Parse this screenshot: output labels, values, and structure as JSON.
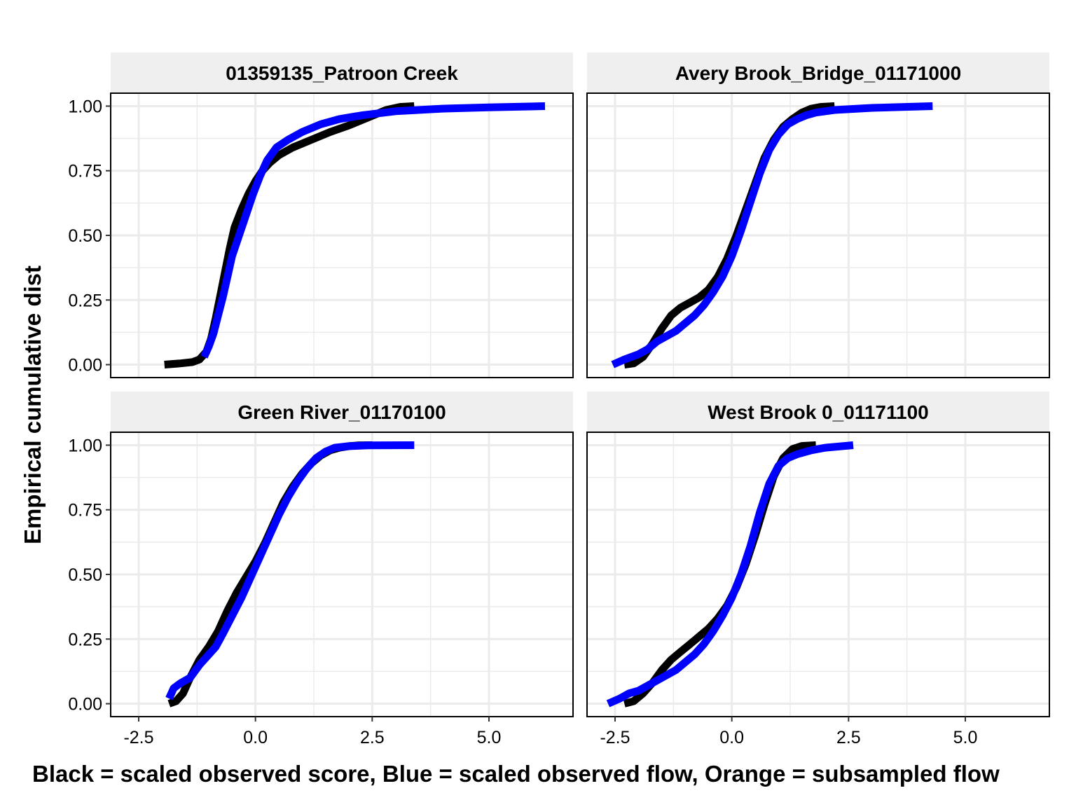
{
  "chart_data": {
    "type": "line",
    "facets": [
      {
        "title": "01359135_Patroon Creek",
        "series": [
          {
            "name": "scaled observed score",
            "color": "#000000",
            "x": [
              -1.95,
              -1.6,
              -1.35,
              -1.2,
              -1.05,
              -0.95,
              -0.85,
              -0.75,
              -0.65,
              -0.55,
              -0.45,
              -0.3,
              -0.15,
              0.0,
              0.15,
              0.3,
              0.5,
              0.8,
              1.2,
              1.6,
              2.0,
              2.4,
              2.8,
              3.1,
              3.4
            ],
            "y": [
              0.0,
              0.005,
              0.01,
              0.02,
              0.05,
              0.1,
              0.18,
              0.27,
              0.36,
              0.45,
              0.53,
              0.6,
              0.66,
              0.71,
              0.75,
              0.78,
              0.81,
              0.84,
              0.87,
              0.9,
              0.925,
              0.955,
              0.985,
              0.997,
              1.0
            ]
          },
          {
            "name": "scaled observed flow",
            "color": "#0000ff",
            "x": [
              -1.1,
              -1.0,
              -0.9,
              -0.8,
              -0.7,
              -0.6,
              -0.5,
              -0.35,
              -0.2,
              -0.05,
              0.1,
              0.25,
              0.45,
              0.7,
              1.0,
              1.4,
              1.8,
              2.3,
              3.0,
              4.0,
              5.0,
              6.2
            ],
            "y": [
              0.03,
              0.07,
              0.12,
              0.19,
              0.26,
              0.34,
              0.42,
              0.5,
              0.58,
              0.66,
              0.73,
              0.79,
              0.84,
              0.87,
              0.9,
              0.93,
              0.95,
              0.965,
              0.98,
              0.99,
              0.995,
              1.0
            ]
          }
        ]
      },
      {
        "title": "Avery Brook_Bridge_01171000",
        "series": [
          {
            "name": "scaled observed score",
            "color": "#000000",
            "x": [
              -2.3,
              -2.1,
              -1.9,
              -1.7,
              -1.5,
              -1.3,
              -1.1,
              -0.9,
              -0.7,
              -0.5,
              -0.3,
              -0.1,
              0.1,
              0.3,
              0.5,
              0.7,
              0.9,
              1.1,
              1.3,
              1.5,
              1.7,
              1.9,
              2.2
            ],
            "y": [
              0.0,
              0.005,
              0.03,
              0.08,
              0.14,
              0.19,
              0.22,
              0.24,
              0.26,
              0.29,
              0.34,
              0.41,
              0.5,
              0.6,
              0.7,
              0.8,
              0.87,
              0.92,
              0.95,
              0.975,
              0.99,
              0.997,
              1.0
            ]
          },
          {
            "name": "scaled observed flow",
            "color": "#0000ff",
            "x": [
              -2.55,
              -2.3,
              -2.0,
              -1.8,
              -1.6,
              -1.4,
              -1.2,
              -1.0,
              -0.8,
              -0.6,
              -0.4,
              -0.2,
              0.0,
              0.2,
              0.4,
              0.6,
              0.8,
              1.0,
              1.2,
              1.4,
              1.6,
              1.8,
              2.2,
              3.0,
              4.3
            ],
            "y": [
              0.0,
              0.02,
              0.04,
              0.06,
              0.09,
              0.11,
              0.13,
              0.16,
              0.19,
              0.23,
              0.28,
              0.34,
              0.42,
              0.52,
              0.63,
              0.74,
              0.83,
              0.89,
              0.93,
              0.95,
              0.965,
              0.975,
              0.985,
              0.993,
              1.0
            ]
          }
        ]
      },
      {
        "title": "Green River_01170100",
        "series": [
          {
            "name": "scaled observed score",
            "color": "#000000",
            "x": [
              -1.85,
              -1.7,
              -1.55,
              -1.4,
              -1.2,
              -1.0,
              -0.8,
              -0.6,
              -0.4,
              -0.2,
              0.0,
              0.2,
              0.4,
              0.6,
              0.8,
              1.0,
              1.2,
              1.4,
              1.6,
              1.8,
              2.0,
              2.2,
              2.5
            ],
            "y": [
              0.0,
              0.01,
              0.04,
              0.1,
              0.17,
              0.22,
              0.28,
              0.36,
              0.43,
              0.49,
              0.55,
              0.62,
              0.7,
              0.78,
              0.84,
              0.89,
              0.93,
              0.96,
              0.98,
              0.99,
              0.996,
              0.999,
              1.0
            ]
          },
          {
            "name": "scaled observed flow",
            "color": "#0000ff",
            "x": [
              -1.85,
              -1.75,
              -1.6,
              -1.4,
              -1.2,
              -1.0,
              -0.85,
              -0.7,
              -0.5,
              -0.3,
              -0.1,
              0.1,
              0.3,
              0.5,
              0.7,
              0.9,
              1.1,
              1.3,
              1.5,
              1.7,
              2.0,
              2.4,
              3.4
            ],
            "y": [
              0.02,
              0.06,
              0.08,
              0.1,
              0.15,
              0.19,
              0.22,
              0.27,
              0.34,
              0.41,
              0.49,
              0.57,
              0.65,
              0.73,
              0.8,
              0.86,
              0.91,
              0.95,
              0.975,
              0.99,
              0.996,
              0.999,
              1.0
            ]
          }
        ]
      },
      {
        "title": "West Brook 0_01171100",
        "series": [
          {
            "name": "scaled observed score",
            "color": "#000000",
            "x": [
              -2.3,
              -2.1,
              -1.9,
              -1.7,
              -1.5,
              -1.3,
              -1.1,
              -0.9,
              -0.7,
              -0.5,
              -0.3,
              -0.1,
              0.1,
              0.3,
              0.5,
              0.7,
              0.9,
              1.1,
              1.3,
              1.5,
              1.8
            ],
            "y": [
              0.0,
              0.01,
              0.04,
              0.08,
              0.13,
              0.17,
              0.2,
              0.23,
              0.26,
              0.29,
              0.33,
              0.38,
              0.45,
              0.54,
              0.65,
              0.77,
              0.88,
              0.95,
              0.985,
              0.997,
              1.0
            ]
          },
          {
            "name": "scaled observed flow",
            "color": "#0000ff",
            "x": [
              -2.65,
              -2.4,
              -2.2,
              -2.0,
              -1.8,
              -1.6,
              -1.4,
              -1.2,
              -1.0,
              -0.8,
              -0.6,
              -0.4,
              -0.2,
              0.0,
              0.2,
              0.4,
              0.6,
              0.8,
              1.0,
              1.2,
              1.4,
              1.7,
              2.0,
              2.6
            ],
            "y": [
              0.0,
              0.02,
              0.04,
              0.05,
              0.07,
              0.09,
              0.11,
              0.13,
              0.16,
              0.19,
              0.23,
              0.28,
              0.34,
              0.41,
              0.5,
              0.61,
              0.74,
              0.85,
              0.92,
              0.95,
              0.965,
              0.98,
              0.99,
              1.0
            ]
          }
        ]
      }
    ],
    "xlabel": "Black = scaled observed score, Blue = scaled observed flow, Orange = subsampled flow",
    "ylabel": "Empirical cumulative dist",
    "xlim": [
      -3.1,
      6.8
    ],
    "ylim": [
      -0.05,
      1.05
    ],
    "xticks": [
      -2.5,
      0.0,
      2.5,
      5.0
    ],
    "xtick_labels": [
      "-2.5",
      "0.0",
      "2.5",
      "5.0"
    ],
    "yticks": [
      0.0,
      0.25,
      0.5,
      0.75,
      1.0
    ],
    "ytick_labels": [
      "0.00",
      "0.25",
      "0.50",
      "0.75",
      "1.00"
    ],
    "grid": true,
    "legend": "none",
    "strip_color": "#efefef",
    "grid_color": "#ebebeb"
  }
}
